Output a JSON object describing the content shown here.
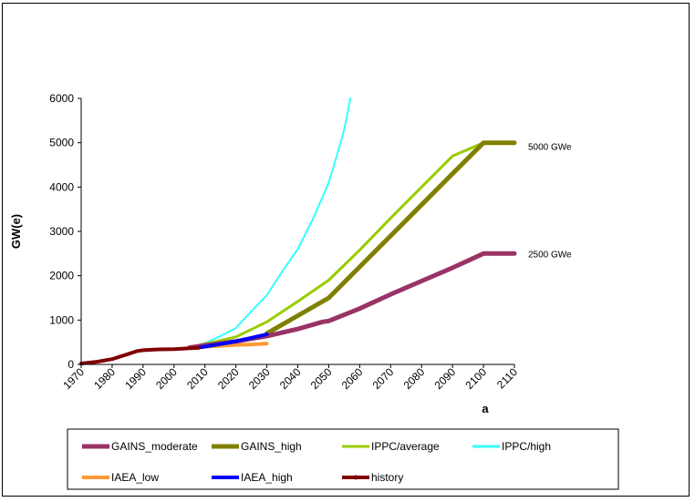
{
  "chart_data": {
    "type": "line",
    "xlabel": "a",
    "ylabel": "GW(e)",
    "xlim": [
      1970,
      2110
    ],
    "ylim": [
      0,
      6000
    ],
    "x_ticks": [
      1970,
      1980,
      1990,
      2000,
      2010,
      2020,
      2030,
      2040,
      2050,
      2060,
      2070,
      2080,
      2090,
      2100,
      2110
    ],
    "y_ticks": [
      0,
      1000,
      2000,
      3000,
      4000,
      5000,
      6000
    ],
    "legend_position": "bottom",
    "grid": false,
    "annotations": [
      {
        "text": "5000 GWe",
        "x": 2110,
        "y": 5000
      },
      {
        "text": "2500 GWe",
        "x": 2110,
        "y": 2500
      }
    ],
    "series": [
      {
        "name": "GAINS_moderate",
        "color": "#993366",
        "width": 5,
        "points": [
          [
            2005,
            380
          ],
          [
            2010,
            430
          ],
          [
            2020,
            520
          ],
          [
            2030,
            640
          ],
          [
            2040,
            800
          ],
          [
            2048,
            960
          ],
          [
            2050,
            980
          ],
          [
            2060,
            1260
          ],
          [
            2070,
            1580
          ],
          [
            2080,
            1880
          ],
          [
            2090,
            2180
          ],
          [
            2100,
            2500
          ],
          [
            2110,
            2500
          ]
        ]
      },
      {
        "name": "GAINS_high",
        "color": "#808000",
        "width": 5,
        "points": [
          [
            2030,
            700
          ],
          [
            2040,
            1100
          ],
          [
            2050,
            1500
          ],
          [
            2060,
            2200
          ],
          [
            2070,
            2900
          ],
          [
            2080,
            3600
          ],
          [
            2090,
            4300
          ],
          [
            2100,
            5000
          ],
          [
            2110,
            5000
          ]
        ]
      },
      {
        "name": "IPPC/average",
        "color": "#99CC00",
        "width": 3,
        "points": [
          [
            2008,
            430
          ],
          [
            2010,
            460
          ],
          [
            2020,
            620
          ],
          [
            2030,
            960
          ],
          [
            2040,
            1420
          ],
          [
            2050,
            1900
          ],
          [
            2060,
            2580
          ],
          [
            2070,
            3300
          ],
          [
            2080,
            4000
          ],
          [
            2090,
            4700
          ],
          [
            2100,
            5000
          ]
        ]
      },
      {
        "name": "IPPC/high",
        "color": "#33FFFF",
        "width": 2,
        "points": [
          [
            2008,
            440
          ],
          [
            2010,
            480
          ],
          [
            2015,
            640
          ],
          [
            2020,
            820
          ],
          [
            2025,
            1200
          ],
          [
            2030,
            1560
          ],
          [
            2035,
            2100
          ],
          [
            2040,
            2600
          ],
          [
            2045,
            3300
          ],
          [
            2050,
            4100
          ],
          [
            2053,
            4800
          ],
          [
            2055,
            5300
          ],
          [
            2057,
            6000
          ]
        ]
      },
      {
        "name": "IAEA_low",
        "color": "#FF9933",
        "width": 4,
        "points": [
          [
            2008,
            390
          ],
          [
            2010,
            400
          ],
          [
            2015,
            420
          ],
          [
            2020,
            440
          ],
          [
            2025,
            450
          ],
          [
            2030,
            470
          ]
        ]
      },
      {
        "name": "IAEA_high",
        "color": "#0000FF",
        "width": 4,
        "points": [
          [
            2008,
            380
          ],
          [
            2010,
            400
          ],
          [
            2015,
            460
          ],
          [
            2020,
            520
          ],
          [
            2025,
            600
          ],
          [
            2030,
            680
          ]
        ]
      },
      {
        "name": "history",
        "color": "#800000",
        "width": 4,
        "points": [
          [
            1970,
            20
          ],
          [
            1975,
            60
          ],
          [
            1980,
            120
          ],
          [
            1985,
            230
          ],
          [
            1988,
            300
          ],
          [
            1990,
            320
          ],
          [
            1995,
            340
          ],
          [
            2000,
            345
          ],
          [
            2005,
            365
          ],
          [
            2008,
            375
          ]
        ]
      }
    ]
  }
}
